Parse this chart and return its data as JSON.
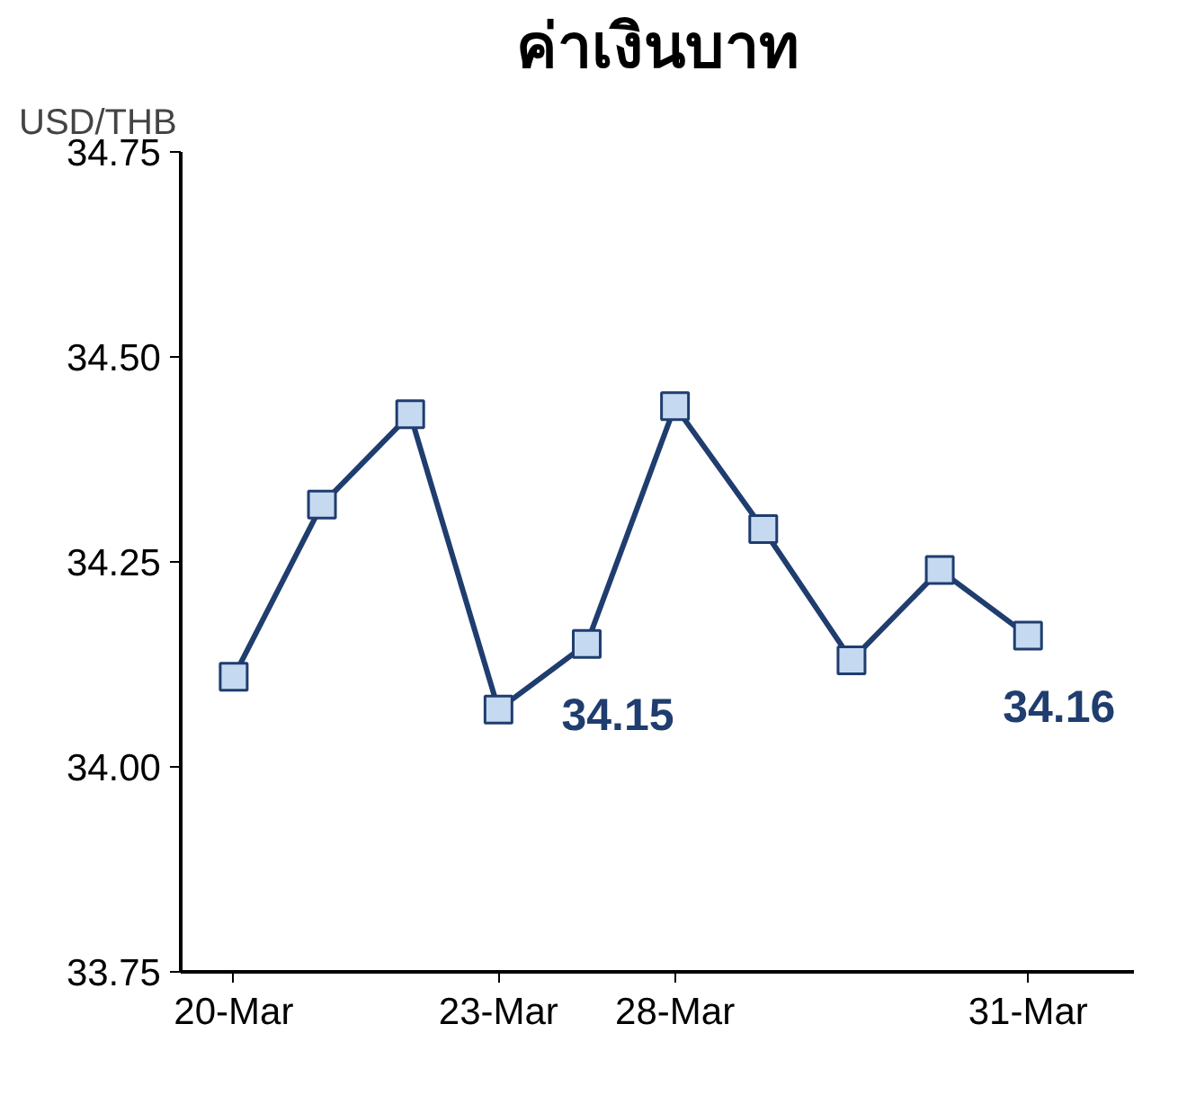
{
  "chart_data": {
    "type": "line",
    "title": "ค่าเงินบาท",
    "ylabel": "USD/THB",
    "categories": [
      "20-Mar",
      null,
      null,
      "23-Mar",
      null,
      "28-Mar",
      null,
      null,
      null,
      "31-Mar"
    ],
    "series": [
      {
        "color": "#1f3d6e",
        "values": [
          34.11,
          34.32,
          34.43,
          34.07,
          34.15,
          34.44,
          34.29,
          34.13,
          34.24,
          34.16
        ],
        "value_labels": [
          null,
          null,
          null,
          null,
          "34.15",
          null,
          null,
          null,
          null,
          "34.16"
        ]
      }
    ],
    "ylim": [
      33.75,
      34.75
    ],
    "yticks": [
      {
        "value": 33.75,
        "label": "33.75"
      },
      {
        "value": 34.0,
        "label": "34.00"
      },
      {
        "value": 34.25,
        "label": "34.25"
      },
      {
        "value": 34.5,
        "label": "34.50"
      },
      {
        "value": 34.75,
        "label": "34.75"
      }
    ],
    "marker": "square",
    "grid": false
  }
}
